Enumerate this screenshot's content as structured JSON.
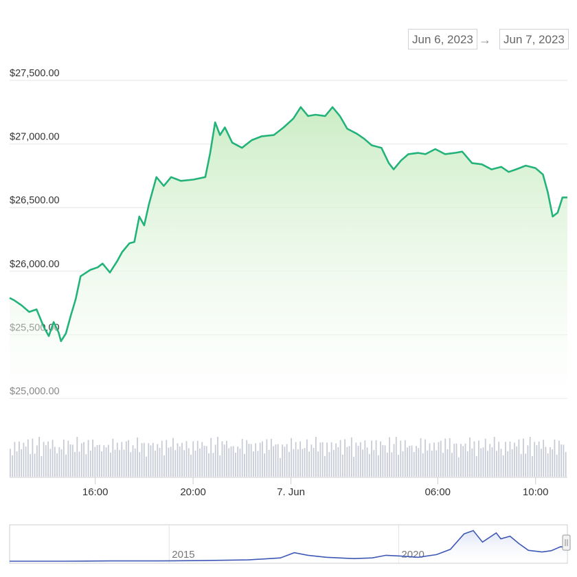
{
  "date_range": {
    "from": "Jun 6, 2023",
    "arrow": "→",
    "to": "Jun 7, 2023"
  },
  "colors": {
    "line": "#23b37a",
    "area_top": "#c9ecc2",
    "volume": "#c7cbd6",
    "navigator_line": "#3d57b5",
    "grid": "#e6e6e6"
  },
  "chart_data": {
    "type": "line",
    "ylabel": "",
    "y_ticks": [
      "$25,000.00",
      "$25,500.00",
      "$26,000.00",
      "$26,500.00",
      "$27,000.00",
      "$27,500.00"
    ],
    "y_tick_values": [
      25000,
      25500,
      26000,
      26500,
      27000,
      27500
    ],
    "ylim": [
      25000,
      27500
    ],
    "x_range_hours": [
      12.5,
      35.3
    ],
    "x_ticks": [
      {
        "label": "16:00",
        "hour": 16
      },
      {
        "label": "20:00",
        "hour": 20
      },
      {
        "label": "7. Jun",
        "hour": 24
      },
      {
        "label": "06:00",
        "hour": 30
      },
      {
        "label": "10:00",
        "hour": 34
      }
    ],
    "series": [
      {
        "points": [
          [
            12.5,
            25790
          ],
          [
            12.7,
            25770
          ],
          [
            13.0,
            25730
          ],
          [
            13.3,
            25680
          ],
          [
            13.6,
            25700
          ],
          [
            13.9,
            25560
          ],
          [
            14.1,
            25490
          ],
          [
            14.3,
            25600
          ],
          [
            14.5,
            25520
          ],
          [
            14.6,
            25450
          ],
          [
            14.8,
            25510
          ],
          [
            15.0,
            25650
          ],
          [
            15.2,
            25780
          ],
          [
            15.4,
            25960
          ],
          [
            15.8,
            26010
          ],
          [
            16.1,
            26030
          ],
          [
            16.3,
            26060
          ],
          [
            16.6,
            25990
          ],
          [
            16.9,
            26080
          ],
          [
            17.1,
            26150
          ],
          [
            17.4,
            26220
          ],
          [
            17.6,
            26230
          ],
          [
            17.8,
            26430
          ],
          [
            18.0,
            26360
          ],
          [
            18.2,
            26530
          ],
          [
            18.5,
            26740
          ],
          [
            18.8,
            26670
          ],
          [
            19.1,
            26740
          ],
          [
            19.5,
            26710
          ],
          [
            20.0,
            26720
          ],
          [
            20.5,
            26740
          ],
          [
            20.7,
            26930
          ],
          [
            20.9,
            27170
          ],
          [
            21.1,
            27070
          ],
          [
            21.3,
            27130
          ],
          [
            21.6,
            27010
          ],
          [
            22.0,
            26970
          ],
          [
            22.4,
            27030
          ],
          [
            22.8,
            27060
          ],
          [
            23.3,
            27070
          ],
          [
            23.7,
            27130
          ],
          [
            24.1,
            27200
          ],
          [
            24.4,
            27290
          ],
          [
            24.7,
            27220
          ],
          [
            25.0,
            27230
          ],
          [
            25.4,
            27220
          ],
          [
            25.7,
            27290
          ],
          [
            26.0,
            27220
          ],
          [
            26.3,
            27120
          ],
          [
            26.7,
            27080
          ],
          [
            27.0,
            27040
          ],
          [
            27.3,
            26990
          ],
          [
            27.7,
            26970
          ],
          [
            28.0,
            26850
          ],
          [
            28.2,
            26800
          ],
          [
            28.5,
            26870
          ],
          [
            28.8,
            26920
          ],
          [
            29.2,
            26930
          ],
          [
            29.5,
            26920
          ],
          [
            29.9,
            26960
          ],
          [
            30.3,
            26920
          ],
          [
            30.7,
            26930
          ],
          [
            31.0,
            26940
          ],
          [
            31.4,
            26850
          ],
          [
            31.8,
            26840
          ],
          [
            32.2,
            26800
          ],
          [
            32.6,
            26820
          ],
          [
            32.9,
            26780
          ],
          [
            33.2,
            26800
          ],
          [
            33.6,
            26830
          ],
          [
            34.0,
            26810
          ],
          [
            34.3,
            26760
          ],
          [
            34.5,
            26620
          ],
          [
            34.7,
            26430
          ],
          [
            34.9,
            26460
          ],
          [
            35.1,
            26580
          ],
          [
            35.3,
            26580
          ]
        ]
      }
    ]
  },
  "volume": {
    "bar_count": 250,
    "relative_heights": [
      0.78,
      0.55,
      0.82,
      0.7,
      0.88,
      0.62,
      0.9,
      0.74,
      0.85,
      0.6,
      0.92,
      0.66,
      0.8,
      0.95,
      0.58,
      0.87,
      0.72,
      0.93,
      0.68,
      0.84
    ]
  },
  "navigator": {
    "labels": [
      "2015",
      "2020"
    ],
    "label_years": [
      2015,
      2020
    ],
    "x_range_years": [
      2011.3,
      2023.45
    ],
    "points": [
      [
        2011.3,
        0.02
      ],
      [
        2012.5,
        0.02
      ],
      [
        2013.5,
        0.03
      ],
      [
        2014.5,
        0.03
      ],
      [
        2015.5,
        0.04
      ],
      [
        2016.5,
        0.06
      ],
      [
        2017.2,
        0.12
      ],
      [
        2017.5,
        0.28
      ],
      [
        2017.8,
        0.2
      ],
      [
        2018.2,
        0.14
      ],
      [
        2018.8,
        0.1
      ],
      [
        2019.2,
        0.12
      ],
      [
        2019.5,
        0.2
      ],
      [
        2019.8,
        0.18
      ],
      [
        2020.2,
        0.14
      ],
      [
        2020.6,
        0.22
      ],
      [
        2020.9,
        0.38
      ],
      [
        2021.2,
        0.85
      ],
      [
        2021.4,
        0.95
      ],
      [
        2021.6,
        0.6
      ],
      [
        2021.9,
        0.88
      ],
      [
        2022.0,
        0.7
      ],
      [
        2022.2,
        0.78
      ],
      [
        2022.4,
        0.55
      ],
      [
        2022.6,
        0.35
      ],
      [
        2022.9,
        0.3
      ],
      [
        2023.1,
        0.34
      ],
      [
        2023.3,
        0.46
      ],
      [
        2023.45,
        0.44
      ]
    ]
  }
}
